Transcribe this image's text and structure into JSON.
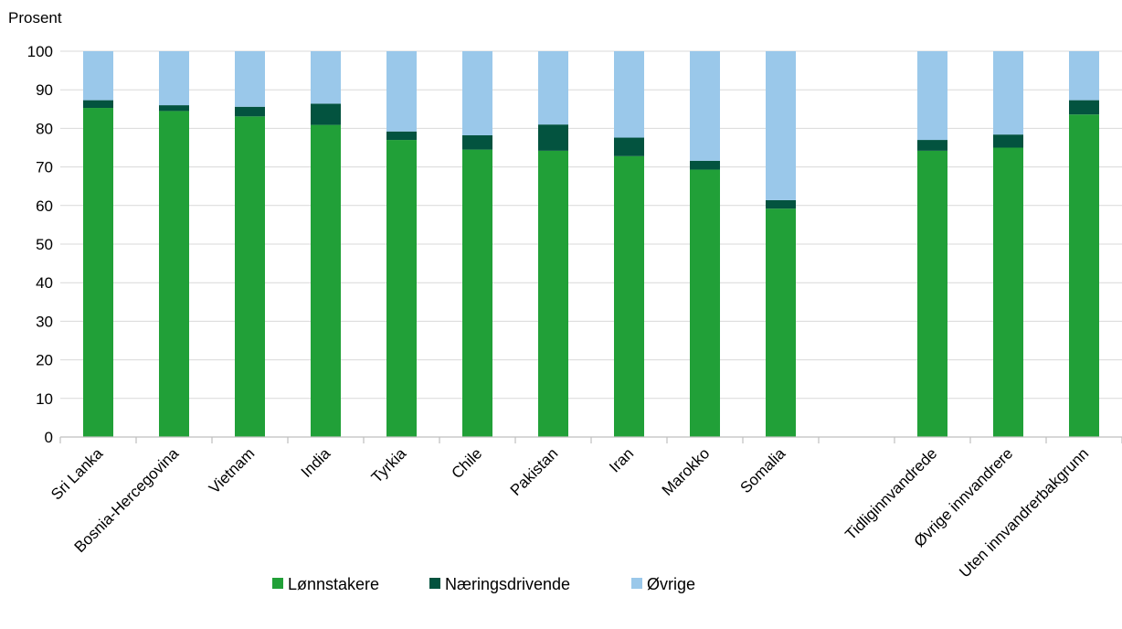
{
  "chart_data": {
    "type": "bar",
    "stacked": true,
    "ylabel": "Prosent",
    "ylim": [
      0,
      100
    ],
    "yticks": [
      0,
      10,
      20,
      30,
      40,
      50,
      60,
      70,
      80,
      90,
      100
    ],
    "grid": true,
    "legend_position": "bottom",
    "categories": [
      "Sri Lanka",
      "Bosnia-Hercegovina",
      "Vietnam",
      "India",
      "Tyrkia",
      "Chile",
      "Pakistan",
      "Iran",
      "Marokko",
      "Somalia",
      "",
      "Tidliginnvandrede",
      "Øvrige innvandrere",
      "Uten innvandrerbakgrunn"
    ],
    "series": [
      {
        "name": "Lønnstakere",
        "color": "#21a038",
        "values": [
          85.3,
          84.5,
          83.1,
          80.9,
          77.0,
          74.5,
          74.2,
          72.8,
          69.3,
          59.2,
          null,
          74.2,
          75.0,
          83.6
        ]
      },
      {
        "name": "Næringsdrivende",
        "color": "#03533f",
        "values": [
          2.0,
          1.5,
          2.5,
          5.5,
          2.2,
          3.7,
          6.8,
          4.8,
          2.3,
          2.2,
          null,
          2.8,
          3.4,
          3.7
        ]
      },
      {
        "name": "Øvrige",
        "color": "#9ac8ea",
        "values": [
          12.7,
          14.0,
          14.4,
          13.6,
          20.8,
          21.8,
          19.0,
          22.4,
          28.4,
          38.6,
          null,
          23.0,
          21.6,
          12.7
        ]
      }
    ]
  }
}
